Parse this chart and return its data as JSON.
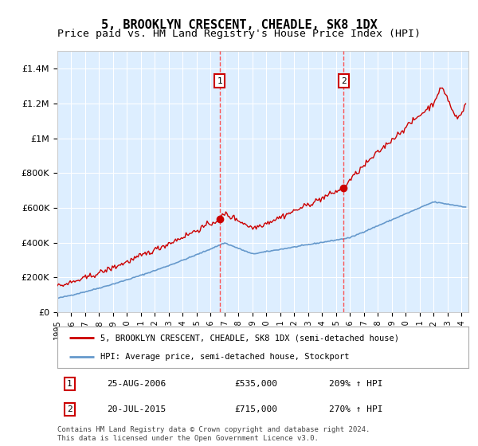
{
  "title": "5, BROOKLYN CRESCENT, CHEADLE, SK8 1DX",
  "subtitle": "Price paid vs. HM Land Registry's House Price Index (HPI)",
  "ylabel_ticks": [
    "£0",
    "£200K",
    "£400K",
    "£600K",
    "£800K",
    "£1M",
    "£1.2M",
    "£1.4M"
  ],
  "ytick_values": [
    0,
    200000,
    400000,
    600000,
    800000,
    1000000,
    1200000,
    1400000
  ],
  "ylim": [
    0,
    1500000
  ],
  "xlim_start": 1995.0,
  "xlim_end": 2024.5,
  "sale1_year": 2006.648,
  "sale1_price": 535000,
  "sale1_label": "1",
  "sale1_date": "25-AUG-2006",
  "sale1_hpi": "209%",
  "sale2_year": 2015.547,
  "sale2_price": 715000,
  "sale2_label": "2",
  "sale2_date": "20-JUL-2015",
  "sale2_hpi": "270%",
  "hpi_color": "#6699cc",
  "sale_line_color": "#cc0000",
  "sale_dot_color": "#cc0000",
  "vline_color": "#ff4444",
  "plot_bg": "#ddeeff",
  "legend_line1": "5, BROOKLYN CRESCENT, CHEADLE, SK8 1DX (semi-detached house)",
  "legend_line2": "HPI: Average price, semi-detached house, Stockport",
  "footer": "Contains HM Land Registry data © Crown copyright and database right 2024.\nThis data is licensed under the Open Government Licence v3.0.",
  "title_fontsize": 11,
  "subtitle_fontsize": 9.5
}
